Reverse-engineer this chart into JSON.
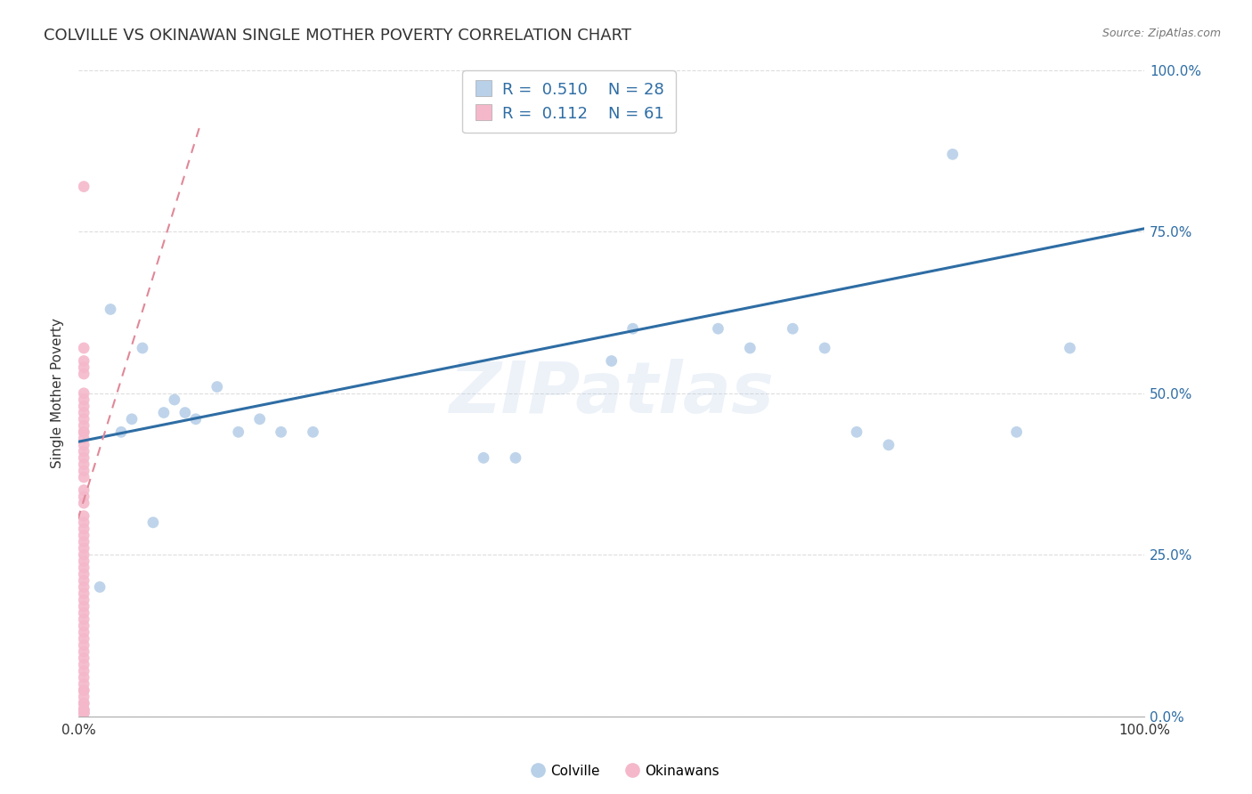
{
  "title": "COLVILLE VS OKINAWAN SINGLE MOTHER POVERTY CORRELATION CHART",
  "source": "Source: ZipAtlas.com",
  "ylabel": "Single Mother Poverty",
  "background_color": "#ffffff",
  "legend_label_blue": "Colville",
  "legend_label_pink": "Okinawans",
  "r_blue": "0.510",
  "n_blue": "28",
  "r_pink": "0.112",
  "n_pink": "61",
  "colville_x": [
    0.02,
    0.03,
    0.04,
    0.05,
    0.06,
    0.07,
    0.08,
    0.09,
    0.1,
    0.11,
    0.13,
    0.15,
    0.17,
    0.19,
    0.22,
    0.38,
    0.41,
    0.5,
    0.52,
    0.6,
    0.63,
    0.67,
    0.7,
    0.73,
    0.76,
    0.82,
    0.88,
    0.93
  ],
  "colville_y": [
    0.2,
    0.63,
    0.44,
    0.46,
    0.57,
    0.3,
    0.47,
    0.49,
    0.47,
    0.46,
    0.51,
    0.44,
    0.46,
    0.44,
    0.44,
    0.4,
    0.4,
    0.55,
    0.6,
    0.6,
    0.57,
    0.6,
    0.57,
    0.44,
    0.42,
    0.87,
    0.44,
    0.57
  ],
  "okinawan_x": [
    0.005,
    0.005,
    0.005,
    0.005,
    0.005,
    0.005,
    0.005,
    0.005,
    0.005,
    0.005,
    0.005,
    0.005,
    0.005,
    0.005,
    0.005,
    0.005,
    0.005,
    0.005,
    0.005,
    0.005,
    0.005,
    0.005,
    0.005,
    0.005,
    0.005,
    0.005,
    0.005,
    0.005,
    0.005,
    0.005,
    0.005,
    0.005,
    0.005,
    0.005,
    0.005,
    0.005,
    0.005,
    0.005,
    0.005,
    0.005,
    0.005,
    0.005,
    0.005,
    0.005,
    0.005,
    0.005,
    0.005,
    0.005,
    0.005,
    0.005,
    0.005,
    0.005,
    0.005,
    0.005,
    0.005,
    0.005,
    0.005,
    0.005,
    0.005,
    0.005,
    0.005
  ],
  "okinawan_y": [
    0.82,
    0.57,
    0.55,
    0.54,
    0.53,
    0.5,
    0.49,
    0.48,
    0.47,
    0.46,
    0.45,
    0.44,
    0.44,
    0.43,
    0.42,
    0.41,
    0.4,
    0.39,
    0.38,
    0.37,
    0.35,
    0.34,
    0.33,
    0.31,
    0.3,
    0.29,
    0.28,
    0.27,
    0.26,
    0.25,
    0.24,
    0.23,
    0.22,
    0.21,
    0.2,
    0.19,
    0.18,
    0.17,
    0.16,
    0.15,
    0.14,
    0.13,
    0.12,
    0.11,
    0.1,
    0.09,
    0.08,
    0.07,
    0.06,
    0.05,
    0.04,
    0.04,
    0.03,
    0.02,
    0.02,
    0.01,
    0.01,
    0.01,
    0.005,
    0.005,
    0.005
  ],
  "blue_line_x": [
    0.0,
    1.0
  ],
  "blue_line_y": [
    0.425,
    0.755
  ],
  "pink_line_x": [
    -0.01,
    0.115
  ],
  "pink_line_y": [
    0.255,
    0.92
  ],
  "dot_color_blue": "#b8d0e8",
  "dot_color_pink": "#f4b8ca",
  "line_color_blue": "#2e6da4",
  "line_color_pink": "#e08898",
  "watermark": "ZIPatlas",
  "title_fontsize": 13,
  "axis_label_color": "#2e6da4",
  "dot_size": 85,
  "xlim": [
    0,
    1
  ],
  "ylim": [
    0,
    1
  ],
  "yticks": [
    0.0,
    0.25,
    0.5,
    0.75,
    1.0
  ],
  "ytick_labels_right": [
    "0.0%",
    "25.0%",
    "50.0%",
    "75.0%",
    "100.0%"
  ]
}
